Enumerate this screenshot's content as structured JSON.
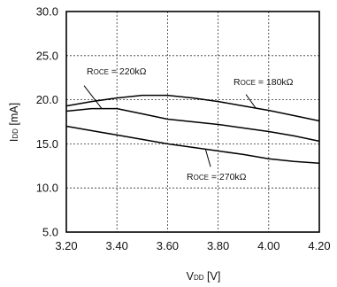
{
  "chart_data": {
    "type": "line",
    "xlabel": {
      "main": "V",
      "sub": "DD",
      "unit": " [V]"
    },
    "ylabel": {
      "main": "I",
      "sub": "DD",
      "unit": " [mA]"
    },
    "xlim": [
      3.2,
      4.2
    ],
    "ylim": [
      5.0,
      30.0
    ],
    "x_ticks": [
      "3.20",
      "3.40",
      "3.60",
      "3.80",
      "4.00",
      "4.20"
    ],
    "y_ticks": [
      "5.0",
      "10.0",
      "15.0",
      "20.0",
      "25.0",
      "30.0"
    ],
    "grid": "dotted",
    "series": [
      {
        "name": "ROCE = 180kΩ",
        "x": [
          3.2,
          3.3,
          3.4,
          3.5,
          3.6,
          3.7,
          3.8,
          3.9,
          4.0,
          4.1,
          4.2
        ],
        "y": [
          18.7,
          19.0,
          19.0,
          18.4,
          17.8,
          17.5,
          17.2,
          16.8,
          16.4,
          15.9,
          15.3
        ]
      },
      {
        "name": "ROCE = 220kΩ",
        "x": [
          3.2,
          3.3,
          3.4,
          3.5,
          3.6,
          3.7,
          3.8,
          3.9,
          4.0,
          4.1,
          4.2
        ],
        "y": [
          19.3,
          19.8,
          20.2,
          20.5,
          20.5,
          20.2,
          19.8,
          19.3,
          18.8,
          18.2,
          17.6
        ]
      },
      {
        "name": "ROCE = 270kΩ",
        "x": [
          3.2,
          3.3,
          3.4,
          3.5,
          3.6,
          3.7,
          3.8,
          3.9,
          4.0,
          4.1,
          4.2
        ],
        "y": [
          17.0,
          16.5,
          16.0,
          15.5,
          15.0,
          14.6,
          14.2,
          13.8,
          13.3,
          13.0,
          12.8
        ]
      }
    ],
    "annotations": [
      {
        "prefix": "R",
        "sub": "OCE",
        "value": " = 220kΩ"
      },
      {
        "prefix": "R",
        "sub": "OCE",
        "value": " = 180kΩ"
      },
      {
        "prefix": "R",
        "sub": "OCE",
        "value": " = 270kΩ"
      }
    ]
  }
}
